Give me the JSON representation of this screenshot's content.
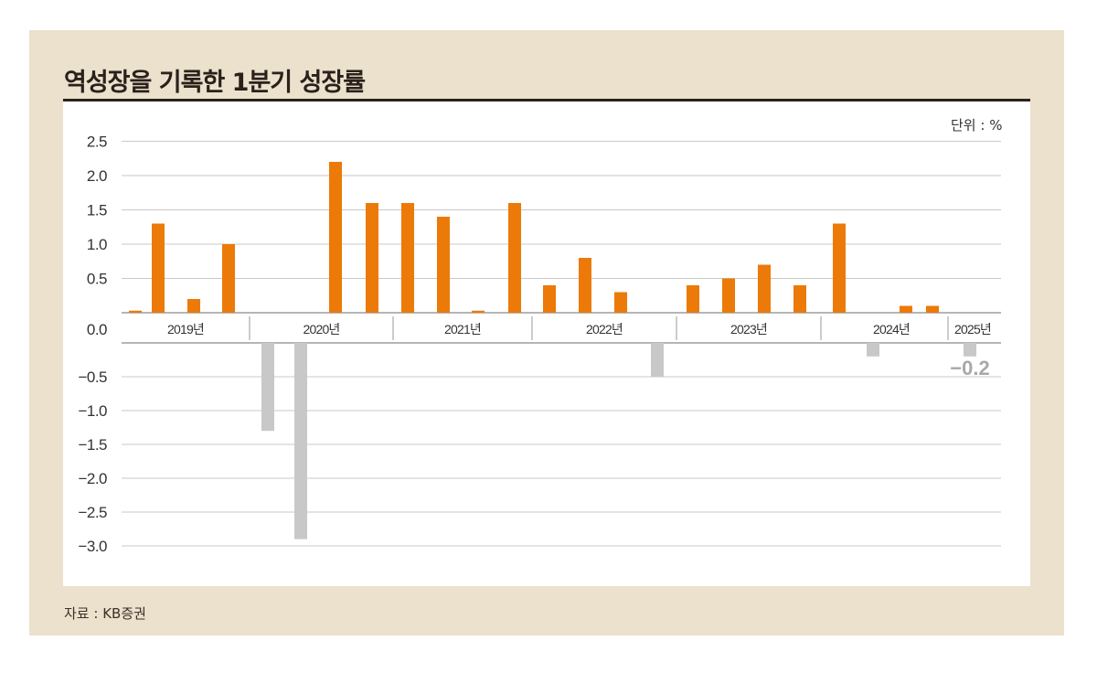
{
  "header": {
    "title": "역성장을 기록한 1분기 성장률",
    "unit_label": "단위 : %"
  },
  "footer": {
    "source": "자료 : KB증권"
  },
  "colors": {
    "background_panel": "#ece1cc",
    "positive_bar": "#ec7a08",
    "negative_bar": "#c8c8c8",
    "title_text": "#2a211b",
    "gridline": "#c9c9c9",
    "axis_line": "#8a8a8a",
    "annotation_text": "#a8a8a8"
  },
  "chart_data": {
    "type": "bar",
    "title": "역성장을 기록한 1분기 성장률",
    "xlabel": "",
    "ylabel": "단위 : %",
    "ylim": [
      -3.0,
      2.5
    ],
    "grid": true,
    "legend": null,
    "y_ticks": [
      "2.5",
      "2.0",
      "1.5",
      "1.0",
      "0.5",
      "0.0",
      "-0.5",
      "-1.0",
      "-1.5",
      "-2.0",
      "-2.5",
      "-3.0"
    ],
    "year_groups": [
      {
        "label": "2019년",
        "quarters": 4
      },
      {
        "label": "2020년",
        "quarters": 4
      },
      {
        "label": "2021년",
        "quarters": 4
      },
      {
        "label": "2022년",
        "quarters": 4
      },
      {
        "label": "2023년",
        "quarters": 4
      },
      {
        "label": "2024년",
        "quarters": 4
      },
      {
        "label": "2025년",
        "quarters": 1
      }
    ],
    "categories": [
      "2019 Q1",
      "2019 Q2",
      "2019 Q3",
      "2019 Q4",
      "2020 Q1",
      "2020 Q2",
      "2020 Q3",
      "2020 Q4",
      "2021 Q1",
      "2021 Q2",
      "2021 Q3",
      "2021 Q4",
      "2022 Q1",
      "2022 Q2",
      "2022 Q3",
      "2022 Q4",
      "2023 Q1",
      "2023 Q2",
      "2023 Q3",
      "2023 Q4",
      "2024 Q1",
      "2024 Q2",
      "2024 Q3",
      "2024 Q4",
      "2025 Q1"
    ],
    "values": [
      0.03,
      1.3,
      0.2,
      1.0,
      -1.3,
      -2.9,
      2.2,
      1.6,
      1.6,
      1.4,
      0.03,
      1.6,
      0.4,
      0.8,
      0.3,
      -0.5,
      0.4,
      0.5,
      0.7,
      0.4,
      1.3,
      -0.2,
      0.1,
      0.1,
      -0.2
    ],
    "annotations": [
      {
        "category": "2025 Q1",
        "text": "-0.2"
      }
    ]
  }
}
